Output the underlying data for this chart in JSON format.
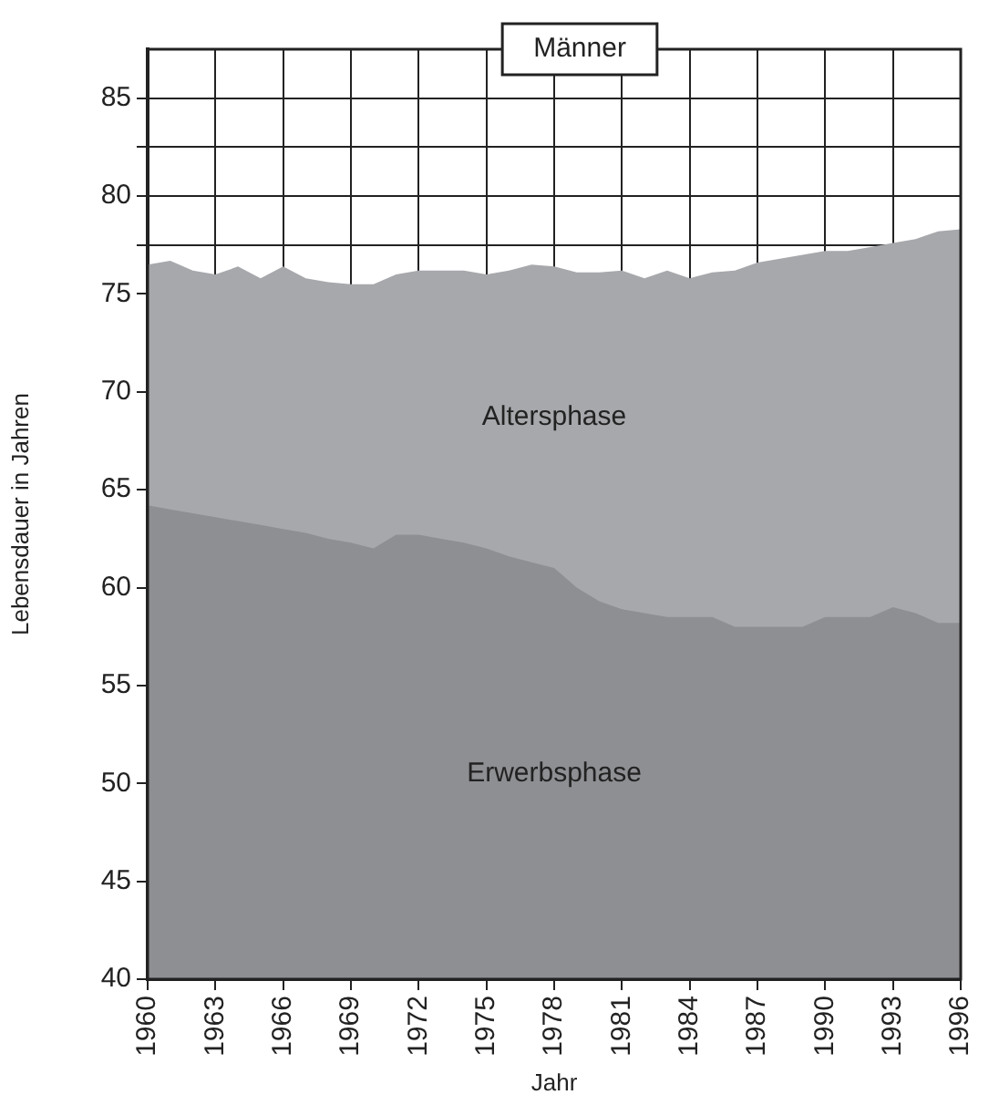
{
  "chart_data": {
    "type": "area",
    "title": "Männer",
    "xlabel": "Jahr",
    "ylabel": "Lebensdauer in Jahren",
    "x": [
      1960,
      1961,
      1962,
      1963,
      1964,
      1965,
      1966,
      1967,
      1968,
      1969,
      1970,
      1971,
      1972,
      1973,
      1974,
      1975,
      1976,
      1977,
      1978,
      1979,
      1980,
      1981,
      1982,
      1983,
      1984,
      1985,
      1986,
      1987,
      1988,
      1989,
      1990,
      1991,
      1992,
      1993,
      1994,
      1995,
      1996
    ],
    "series": [
      {
        "name": "Altersphase",
        "color": "#a7a8ac",
        "values": [
          76.5,
          76.7,
          76.2,
          76.0,
          76.4,
          75.8,
          76.4,
          75.8,
          75.6,
          75.5,
          75.5,
          76.0,
          76.2,
          76.2,
          76.2,
          76.0,
          76.2,
          76.5,
          76.4,
          76.1,
          76.1,
          76.2,
          75.8,
          76.2,
          75.8,
          76.1,
          76.2,
          76.6,
          76.8,
          77.0,
          77.2,
          77.2,
          77.4,
          77.6,
          77.8,
          78.2,
          78.3
        ]
      },
      {
        "name": "Erwerbsphase",
        "color": "#8e8f93",
        "values": [
          64.2,
          64.0,
          63.8,
          63.6,
          63.4,
          63.2,
          63.0,
          62.8,
          62.5,
          62.3,
          62.0,
          62.7,
          62.7,
          62.5,
          62.3,
          62.0,
          61.6,
          61.3,
          61.0,
          60.0,
          59.3,
          58.9,
          58.7,
          58.5,
          58.5,
          58.5,
          58.0,
          58.0,
          58.0,
          58.0,
          58.5,
          58.5,
          58.5,
          59.0,
          58.7,
          58.2,
          58.2
        ]
      }
    ],
    "xlim": [
      1960,
      1996
    ],
    "xticks": [
      1960,
      1963,
      1966,
      1969,
      1972,
      1975,
      1978,
      1981,
      1984,
      1987,
      1990,
      1993,
      1996
    ],
    "ylim": [
      40,
      87.5
    ],
    "yticks": [
      40,
      45,
      50,
      55,
      60,
      65,
      70,
      75,
      {
        "value": 77.5,
        "label": null
      },
      80,
      {
        "value": 82.5,
        "label": null
      },
      85
    ],
    "grid": true,
    "legend": false
  }
}
